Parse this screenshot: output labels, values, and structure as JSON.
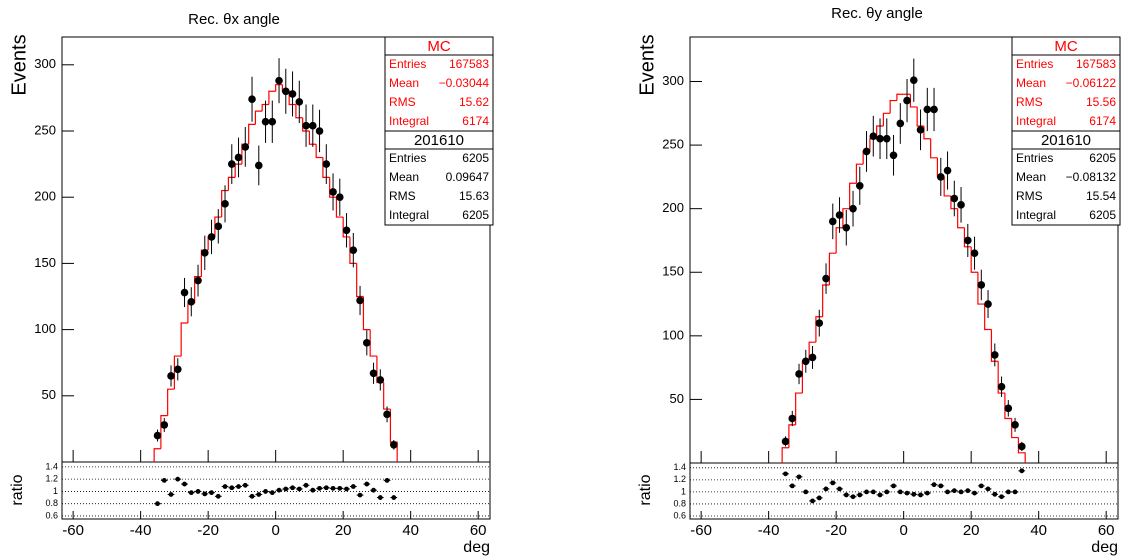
{
  "chart_data": [
    {
      "type": "histogram",
      "title": "Rec. θx angle",
      "ylabel": "Events",
      "xlabel": "deg",
      "xlim": [
        -63.3,
        63.5
      ],
      "xticks": [
        -60,
        -40,
        -20,
        0,
        20,
        40,
        60
      ],
      "ylim": [
        0,
        321
      ],
      "yticks": [
        50,
        100,
        150,
        200,
        250,
        300
      ],
      "bins": [
        -36,
        -34,
        -32,
        -30,
        -28,
        -26,
        -24,
        -22,
        -20,
        -18,
        -16,
        -14,
        -12,
        -10,
        -8,
        -6,
        -4,
        -2,
        0,
        2,
        4,
        6,
        8,
        10,
        12,
        14,
        16,
        18,
        20,
        22,
        24,
        26,
        28,
        30,
        32,
        34,
        36
      ],
      "series": [
        {
          "name": "MC",
          "color": "#ff0000",
          "values": [
            10,
            35,
            55,
            80,
            105,
            120,
            140,
            160,
            170,
            185,
            205,
            215,
            225,
            240,
            255,
            265,
            270,
            280,
            285,
            280,
            270,
            260,
            250,
            240,
            230,
            215,
            200,
            185,
            170,
            150,
            125,
            100,
            80,
            60,
            40,
            15
          ]
        },
        {
          "name": "201610",
          "color": "#000000",
          "values": [
            20,
            28,
            65,
            70,
            128,
            121,
            137,
            158,
            170,
            178,
            195,
            225,
            230,
            238,
            274,
            224,
            257,
            257,
            288,
            280,
            278,
            272,
            254,
            254,
            250,
            225,
            204,
            200,
            175,
            160,
            122,
            90,
            67,
            62,
            36,
            13
          ],
          "errors": [
            4.5,
            5.3,
            8,
            8.4,
            11,
            11,
            12,
            13,
            13,
            13,
            14,
            15,
            15,
            15,
            17,
            15,
            16,
            16,
            17,
            17,
            17,
            16,
            16,
            16,
            16,
            15,
            14,
            14,
            13,
            13,
            11,
            9.5,
            8,
            8,
            6,
            3.6
          ]
        }
      ],
      "ratio": {
        "ylabel": "ratio",
        "ylim": [
          0.55,
          1.48
        ],
        "yticks": [
          0.6,
          0.8,
          1,
          1.2,
          1.4
        ],
        "values": [
          0.8,
          1.18,
          0.95,
          1.2,
          1.12,
          0.98,
          1.0,
          0.96,
          0.98,
          0.92,
          1.08,
          1.06,
          1.08,
          1.1,
          0.92,
          0.95,
          1.0,
          0.98,
          1.02,
          1.04,
          1.06,
          1.04,
          1.1,
          1.02,
          1.05,
          1.06,
          1.05,
          1.05,
          1.04,
          1.08,
          0.94,
          1.12,
          1.02,
          0.9,
          1.18,
          0.9
        ]
      },
      "stats": [
        {
          "title": "MC",
          "color": "#ff0000",
          "entries": [
            {
              "label": "Entries",
              "value": "167583"
            },
            {
              "label": "Mean",
              "value": "−0.03044"
            },
            {
              "label": "RMS",
              "value": "15.62"
            },
            {
              "label": "Integral",
              "value": "6174"
            }
          ]
        },
        {
          "title": "201610",
          "color": "#000000",
          "entries": [
            {
              "label": "Entries",
              "value": "6205"
            },
            {
              "label": "Mean",
              "value": "0.09647"
            },
            {
              "label": "RMS",
              "value": "15.63"
            },
            {
              "label": "Integral",
              "value": "6205"
            }
          ]
        }
      ]
    },
    {
      "type": "histogram",
      "title": "Rec. θy angle",
      "ylabel": "Events",
      "xlabel": "deg",
      "xlim": [
        -63.3,
        63.5
      ],
      "xticks": [
        -60,
        -40,
        -20,
        0,
        20,
        40,
        60
      ],
      "ylim": [
        0,
        335
      ],
      "yticks": [
        50,
        100,
        150,
        200,
        250,
        300
      ],
      "bins": [
        -36,
        -34,
        -32,
        -30,
        -28,
        -26,
        -24,
        -22,
        -20,
        -18,
        -16,
        -14,
        -12,
        -10,
        -8,
        -6,
        -4,
        -2,
        0,
        2,
        4,
        6,
        8,
        10,
        12,
        14,
        16,
        18,
        20,
        22,
        24,
        26,
        28,
        30,
        32,
        34,
        36
      ],
      "series": [
        {
          "name": "MC",
          "color": "#ff0000",
          "values": [
            12,
            30,
            55,
            80,
            95,
            115,
            140,
            165,
            185,
            200,
            220,
            235,
            245,
            255,
            265,
            275,
            285,
            290,
            290,
            280,
            265,
            255,
            240,
            225,
            210,
            200,
            185,
            170,
            150,
            125,
            105,
            80,
            55,
            35,
            20,
            8
          ]
        },
        {
          "name": "201610",
          "color": "#000000",
          "values": [
            17,
            35,
            70,
            80,
            83,
            110,
            145,
            190,
            195,
            185,
            200,
            218,
            245,
            257,
            255,
            255,
            242,
            267,
            285,
            301,
            262,
            278,
            278,
            225,
            230,
            208,
            203,
            175,
            165,
            140,
            125,
            85,
            60,
            43,
            30,
            13
          ],
          "errors": [
            4,
            6,
            8,
            9,
            9,
            10.5,
            12,
            14,
            14,
            14,
            14,
            15,
            16,
            16,
            16,
            16,
            16,
            16,
            17,
            17,
            16,
            17,
            17,
            15,
            15,
            14,
            14,
            13,
            13,
            12,
            11,
            9,
            8,
            6.5,
            5.5,
            3.6
          ]
        }
      ],
      "ratio": {
        "ylabel": "ratio",
        "ylim": [
          0.55,
          1.48
        ],
        "yticks": [
          0.6,
          0.8,
          1,
          1.2,
          1.4
        ],
        "values": [
          1.3,
          1.1,
          1.25,
          1.0,
          0.85,
          0.9,
          1.05,
          1.15,
          1.05,
          0.95,
          0.92,
          0.95,
          1.0,
          1.0,
          0.95,
          1.0,
          1.1,
          1.0,
          0.98,
          0.96,
          0.95,
          0.98,
          1.12,
          1.1,
          1.0,
          1.02,
          1.0,
          1.02,
          0.98,
          1.1,
          1.05,
          0.96,
          0.92,
          1.0,
          1.0,
          1.35
        ]
      },
      "stats": [
        {
          "title": "MC",
          "color": "#ff0000",
          "entries": [
            {
              "label": "Entries",
              "value": "167583"
            },
            {
              "label": "Mean",
              "value": "−0.06122"
            },
            {
              "label": "RMS",
              "value": "15.56"
            },
            {
              "label": "Integral",
              "value": "6174"
            }
          ]
        },
        {
          "title": "201610",
          "color": "#000000",
          "entries": [
            {
              "label": "Entries",
              "value": "6205"
            },
            {
              "label": "Mean",
              "value": "−0.08132"
            },
            {
              "label": "RMS",
              "value": "15.54"
            },
            {
              "label": "Integral",
              "value": "6205"
            }
          ]
        }
      ]
    }
  ]
}
